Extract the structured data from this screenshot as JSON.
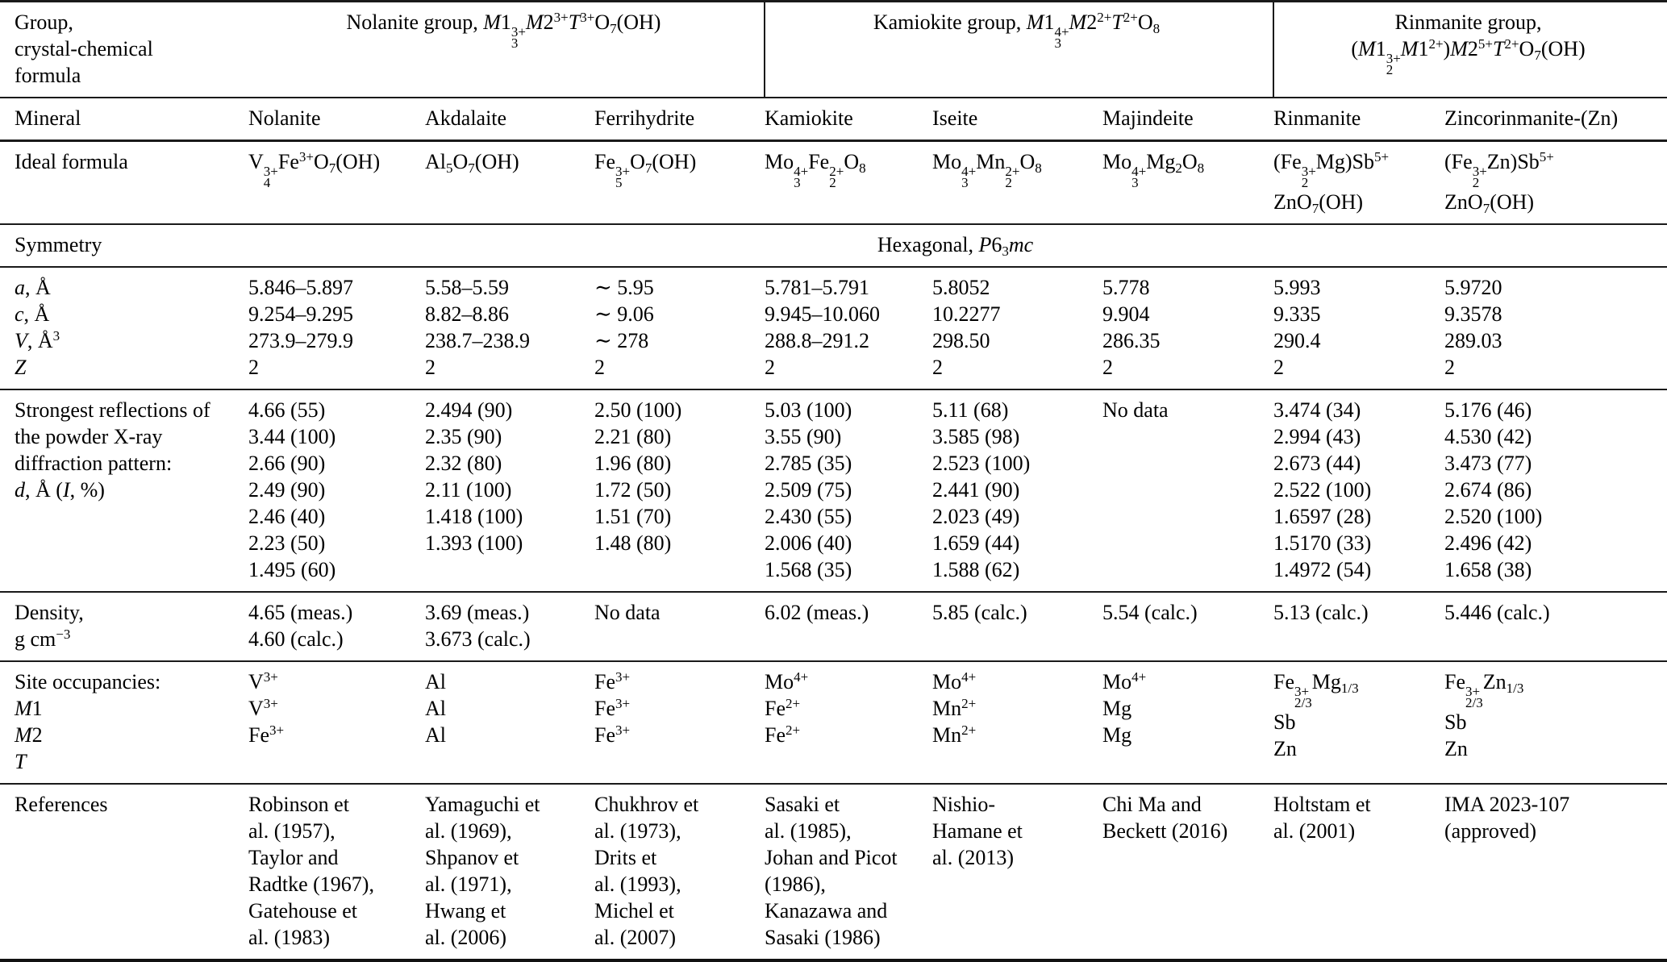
{
  "colors": {
    "text": "#000000",
    "rule": "#1a1a1a",
    "background": "#ffffff"
  },
  "table": {
    "row_labels": {
      "group": [
        "Group,",
        "crystal-chemical",
        "formula"
      ],
      "mineral": "Mineral",
      "ideal_formula": "Ideal formula",
      "symmetry": "Symmetry",
      "cell_params": [
        "<i>a</i>, Å",
        "<i>c</i>, Å",
        "<i>V</i>, Å<sup>3</sup>",
        "<i>Z</i>"
      ],
      "reflections": [
        "Strongest reflections of",
        "the powder X-ray",
        "diffraction pattern:",
        "<i>d</i>, Å (<i>I</i>, %)"
      ],
      "density": [
        "Density,",
        "g cm<sup>−3</sup>"
      ],
      "site_occupancies": [
        "Site occupancies:",
        "<i>M</i>1",
        "<i>M</i>2",
        "<i>T</i>"
      ],
      "references": "References"
    },
    "groups": [
      {
        "name": "Nolanite group",
        "span": 3,
        "title_lines": [
          "Nolanite group, <i>M</i>1<span class='ss'><span>3+</span><span>3</span></span><i>M</i>2<sup>3+</sup><i>T</i><sup>3+</sup>O<sub>7</sub>(OH)"
        ]
      },
      {
        "name": "Kamiokite group",
        "span": 3,
        "title_lines": [
          "Kamiokite group, <i>M</i>1<span class='ss'><span>4+</span><span>3</span></span><i>M</i>2<sup>2+</sup><i>T</i><sup>2+</sup>O<sub>8</sub>"
        ]
      },
      {
        "name": "Rinmanite group",
        "span": 2,
        "title_lines": [
          "Rinmanite group,",
          "(<i>M</i>1<span class='ss'><span>3+</span><span>2</span></span><i>M</i>1<sup>2+</sup>)<i>M</i>2<sup>5+</sup><i>T</i><sup>2+</sup>O<sub>7</sub>(OH)"
        ]
      }
    ],
    "symmetry_value": "Hexagonal, <i>P</i>6<sub>3</sub><i>mc</i>",
    "minerals": [
      {
        "name": "Nolanite",
        "ideal_formula": [
          "V<span class='ss'><span>3+</span><span>4</span></span>Fe<sup>3+</sup>O<sub>7</sub>(OH)"
        ],
        "cell_params": [
          "5.846–5.897",
          "9.254–9.295",
          "273.9–279.9",
          "2"
        ],
        "reflections": [
          "4.66 (55)",
          "3.44 (100)",
          "2.66 (90)",
          "2.49 (90)",
          "2.46 (40)",
          "2.23 (50)",
          "1.495 (60)"
        ],
        "density": [
          "4.65 (meas.)",
          "4.60 (calc.)"
        ],
        "site_occupancies": [
          "V<sup>3+</sup>",
          "V<sup>3+</sup>",
          "Fe<sup>3+</sup>"
        ],
        "references": [
          "Robinson et",
          "al. (1957),",
          "Taylor and",
          "Radtke (1967),",
          "Gatehouse et",
          "al. (1983)"
        ]
      },
      {
        "name": "Akdalaite",
        "ideal_formula": [
          "Al<sub>5</sub>O<sub>7</sub>(OH)"
        ],
        "cell_params": [
          "5.58–5.59",
          "8.82–8.86",
          "238.7–238.9",
          "2"
        ],
        "reflections": [
          "2.494 (90)",
          "2.35 (90)",
          "2.32 (80)",
          "2.11 (100)",
          "1.418 (100)",
          "1.393 (100)"
        ],
        "density": [
          "3.69 (meas.)",
          "3.673 (calc.)"
        ],
        "site_occupancies": [
          "Al",
          "Al",
          "Al"
        ],
        "references": [
          "Yamaguchi et",
          "al. (1969),",
          "Shpanov et",
          "al. (1971),",
          "Hwang et",
          "al. (2006)"
        ]
      },
      {
        "name": "Ferrihydrite",
        "ideal_formula": [
          "Fe<span class='ss'><span>3+</span><span>5</span></span>O<sub>7</sub>(OH)"
        ],
        "cell_params": [
          "∼ 5.95",
          "∼ 9.06",
          "∼ 278",
          "2"
        ],
        "reflections": [
          "2.50 (100)",
          "2.21 (80)",
          "1.96 (80)",
          "1.72 (50)",
          "1.51 (70)",
          "1.48 (80)"
        ],
        "density": [
          "No data"
        ],
        "site_occupancies": [
          "Fe<sup>3+</sup>",
          "Fe<sup>3+</sup>",
          "Fe<sup>3+</sup>"
        ],
        "references": [
          "Chukhrov et",
          "al. (1973),",
          "Drits et",
          "al. (1993),",
          "Michel et",
          "al. (2007)"
        ]
      },
      {
        "name": "Kamiokite",
        "ideal_formula": [
          "Mo<span class='ss'><span>4+</span><span>3</span></span>Fe<span class='ss'><span>2+</span><span>2</span></span>O<sub>8</sub>"
        ],
        "cell_params": [
          "5.781–5.791",
          "9.945–10.060",
          "288.8–291.2",
          "2"
        ],
        "reflections": [
          "5.03 (100)",
          "3.55 (90)",
          "2.785 (35)",
          "2.509 (75)",
          "2.430 (55)",
          "2.006 (40)",
          "1.568 (35)"
        ],
        "density": [
          "6.02 (meas.)"
        ],
        "site_occupancies": [
          "Mo<sup>4+</sup>",
          "Fe<sup>2+</sup>",
          "Fe<sup>2+</sup>"
        ],
        "references": [
          "Sasaki et",
          "al. (1985),",
          "Johan and Picot",
          "(1986),",
          "Kanazawa and",
          "Sasaki (1986)"
        ]
      },
      {
        "name": "Iseite",
        "ideal_formula": [
          "Mo<span class='ss'><span>4+</span><span>3</span></span>Mn<span class='ss'><span>2+</span><span>2</span></span>O<sub>8</sub>"
        ],
        "cell_params": [
          "5.8052",
          "10.2277",
          "298.50",
          "2"
        ],
        "reflections": [
          "5.11 (68)",
          "3.585 (98)",
          "2.523 (100)",
          "2.441 (90)",
          "2.023 (49)",
          "1.659 (44)",
          "1.588 (62)"
        ],
        "density": [
          "5.85 (calc.)"
        ],
        "site_occupancies": [
          "Mo<sup>4+</sup>",
          "Mn<sup>2+</sup>",
          "Mn<sup>2+</sup>"
        ],
        "references": [
          "Nishio-",
          "Hamane et",
          "al. (2013)"
        ]
      },
      {
        "name": "Majindeite",
        "ideal_formula": [
          "Mo<span class='ss'><span>4+</span><span>3</span></span>Mg<sub>2</sub>O<sub>8</sub>"
        ],
        "cell_params": [
          "5.778",
          "9.904",
          "286.35",
          "2"
        ],
        "reflections": [
          "No data"
        ],
        "density": [
          "5.54 (calc.)"
        ],
        "site_occupancies": [
          "Mo<sup>4+</sup>",
          "Mg",
          "Mg"
        ],
        "references": [
          "Chi Ma and",
          "Beckett (2016)"
        ]
      },
      {
        "name": "Rinmanite",
        "ideal_formula": [
          "(Fe<span class='ss'><span>3+</span><span>2</span></span>Mg)Sb<sup>5+</sup>",
          "ZnO<sub>7</sub>(OH)"
        ],
        "cell_params": [
          "5.993",
          "9.335",
          "290.4",
          "2"
        ],
        "reflections": [
          "3.474 (34)",
          "2.994 (43)",
          "2.673 (44)",
          "2.522 (100)",
          "1.6597 (28)",
          "1.5170 (33)",
          "1.4972 (54)"
        ],
        "density": [
          "5.13 (calc.)"
        ],
        "site_occupancies": [
          "Fe<span class='ss'><span>3+</span><span>2/3</span></span>Mg<sub>1/3</sub>",
          "Sb",
          "Zn"
        ],
        "references": [
          "Holtstam et",
          "al. (2001)"
        ]
      },
      {
        "name": "Zincorinmanite-(Zn)",
        "ideal_formula": [
          "(Fe<span class='ss'><span>3+</span><span>2</span></span>Zn)Sb<sup>5+</sup>",
          "ZnO<sub>7</sub>(OH)"
        ],
        "cell_params": [
          "5.9720",
          "9.3578",
          "289.03",
          "2"
        ],
        "reflections": [
          "5.176 (46)",
          "4.530 (42)",
          "3.473 (77)",
          "2.674 (86)",
          "2.520 (100)",
          "2.496 (42)",
          "1.658 (38)"
        ],
        "density": [
          "5.446 (calc.)"
        ],
        "site_occupancies": [
          "Fe<span class='ss'><span>3+</span><span>2/3</span></span>Zn<sub>1/3</sub>",
          "Sb",
          "Zn"
        ],
        "references": [
          "IMA 2023-107",
          "(approved)"
        ]
      }
    ]
  }
}
